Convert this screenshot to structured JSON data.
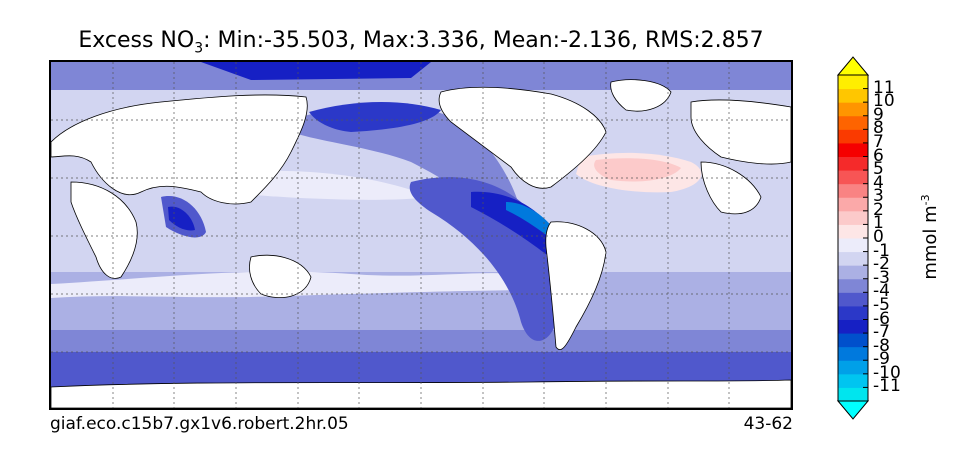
{
  "title": {
    "variable": "Excess NO",
    "subscript": "3",
    "stats": ": Min:-35.503, Max:3.336, Mean:-2.136, RMS:2.857"
  },
  "footer": {
    "run_id": "giaf.eco.c15b7.gx1v6.robert.2hr.05",
    "years": "43-62"
  },
  "colorbar": {
    "unit_base": "mmol m",
    "unit_exp": "-3",
    "levels": [
      "-11",
      "-10",
      "-9",
      "-8",
      "-7",
      "-6",
      "-5",
      "-4",
      "-3",
      "-2",
      "-1",
      "0",
      "1",
      "2",
      "3",
      "4",
      "5",
      "6",
      "7",
      "8",
      "9",
      "10",
      "11"
    ],
    "colors": [
      "#00e5ee",
      "#00c5f0",
      "#00a0e8",
      "#0079dd",
      "#0050cc",
      "#1620c4",
      "#2b38c8",
      "#5058cc",
      "#7f86d6",
      "#abb0e4",
      "#d2d5f1",
      "#ececfa",
      "#fde6e6",
      "#fccaca",
      "#fba9a9",
      "#f98383",
      "#f75555",
      "#f52a2a",
      "#f50000",
      "#fa3a00",
      "#fe6400",
      "#ff9500",
      "#ffc600",
      "#ffee00"
    ],
    "extend_low_color": "#00ffff",
    "extend_high_color": "#ffff00"
  },
  "colors": {
    "land": "#ffffff",
    "coastline": "#000000",
    "gridline": "#555555"
  }
}
